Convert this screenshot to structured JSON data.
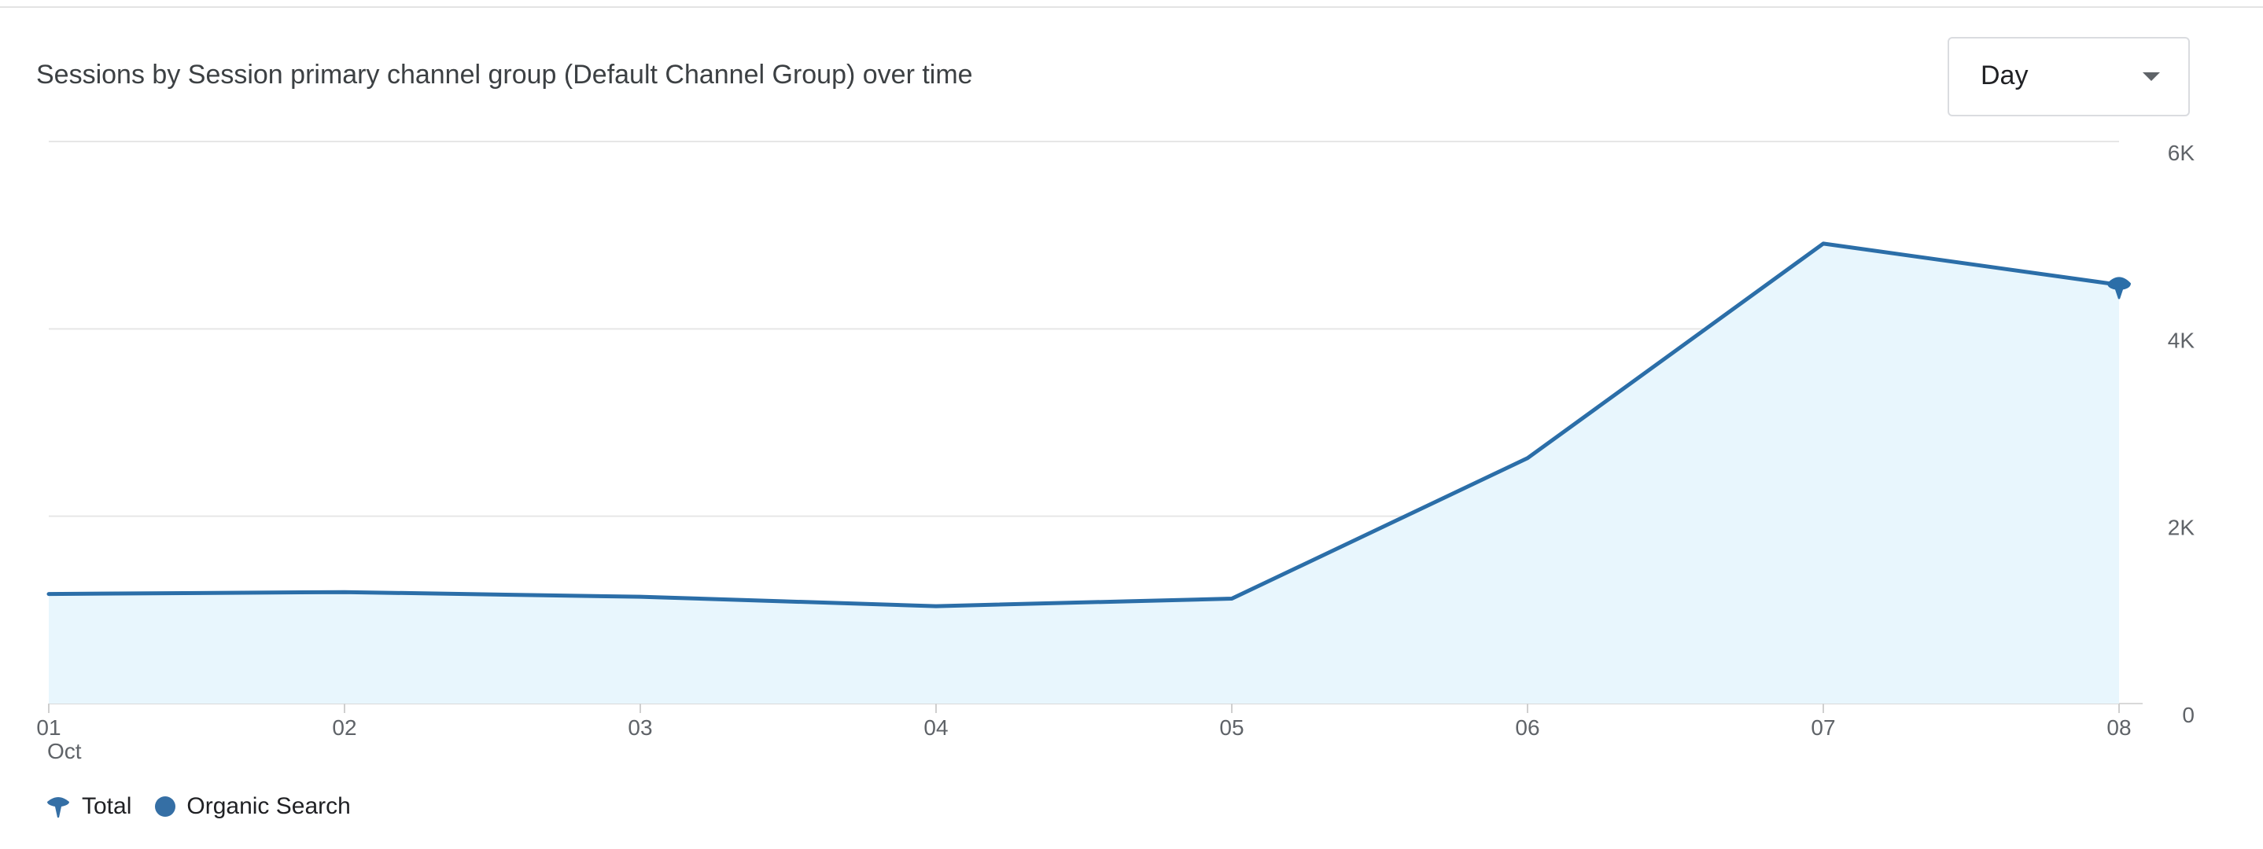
{
  "card": {
    "title": "Sessions by Session primary channel group (Default Channel Group) over time"
  },
  "granularity": {
    "selected": "Day"
  },
  "colors": {
    "line": "#2b6ea8",
    "area": "#e8f6fd",
    "grid": "#e6e6e6",
    "axis_text": "#5f6368",
    "legend_dot": "#356fa5"
  },
  "chart_data": {
    "type": "area",
    "x": [
      "01",
      "02",
      "03",
      "04",
      "05",
      "06",
      "07",
      "08"
    ],
    "x_sublabels": [
      "Oct",
      "",
      "",
      "",
      "",
      "",
      "",
      ""
    ],
    "ylim": [
      0,
      6000
    ],
    "y_ticks": [
      0,
      2000,
      4000,
      6000
    ],
    "y_tick_labels": [
      "0",
      "2K",
      "4K",
      "6K"
    ],
    "grid": true,
    "legend_position": "bottom-left",
    "series": [
      {
        "name": "Total",
        "values": [
          1170,
          1190,
          1140,
          1040,
          1120,
          2620,
          4910,
          4470
        ]
      }
    ],
    "legend": [
      {
        "label": "Total",
        "icon": "total-marker-icon"
      },
      {
        "label": "Organic Search",
        "icon": "dot-icon"
      }
    ]
  }
}
